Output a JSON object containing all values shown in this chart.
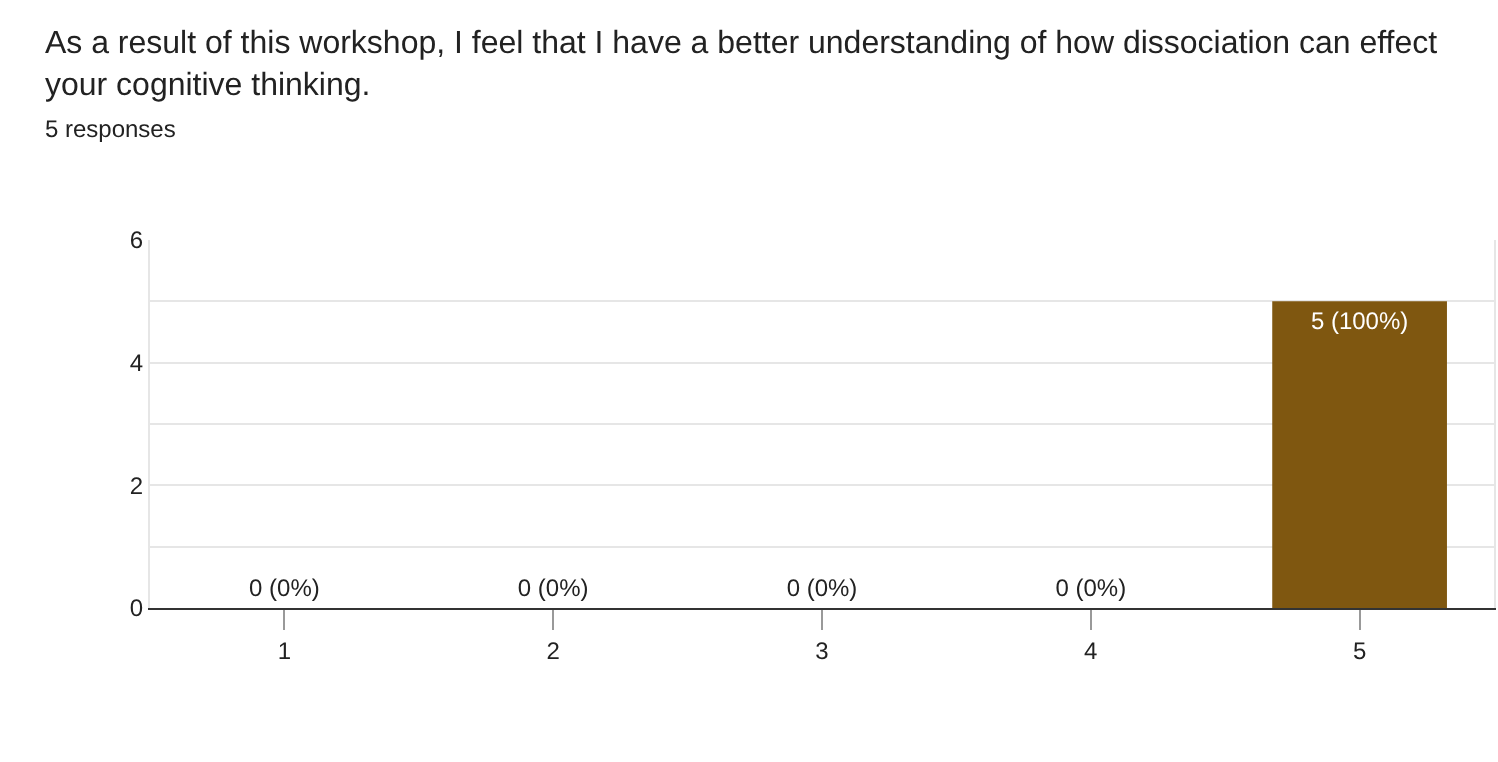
{
  "chart_data": {
    "type": "bar",
    "title": "As a result of this workshop, I feel that I have a better understanding of how dissociation can effect\nyour cognitive thinking.",
    "subtitle": "5 responses",
    "categories": [
      "1",
      "2",
      "3",
      "4",
      "5"
    ],
    "values": [
      0,
      0,
      0,
      0,
      5
    ],
    "value_labels": [
      "0 (0%)",
      "0 (0%)",
      "0 (0%)",
      "0 (0%)",
      "5 (100%)"
    ],
    "color": "#7f5710",
    "ylim": [
      0,
      6
    ],
    "yticks": [
      0,
      {
        "value": 1,
        "label": null
      },
      2,
      {
        "value": 3,
        "label": null
      },
      4,
      {
        "value": 5,
        "label": null
      },
      6
    ],
    "grid": "y"
  }
}
